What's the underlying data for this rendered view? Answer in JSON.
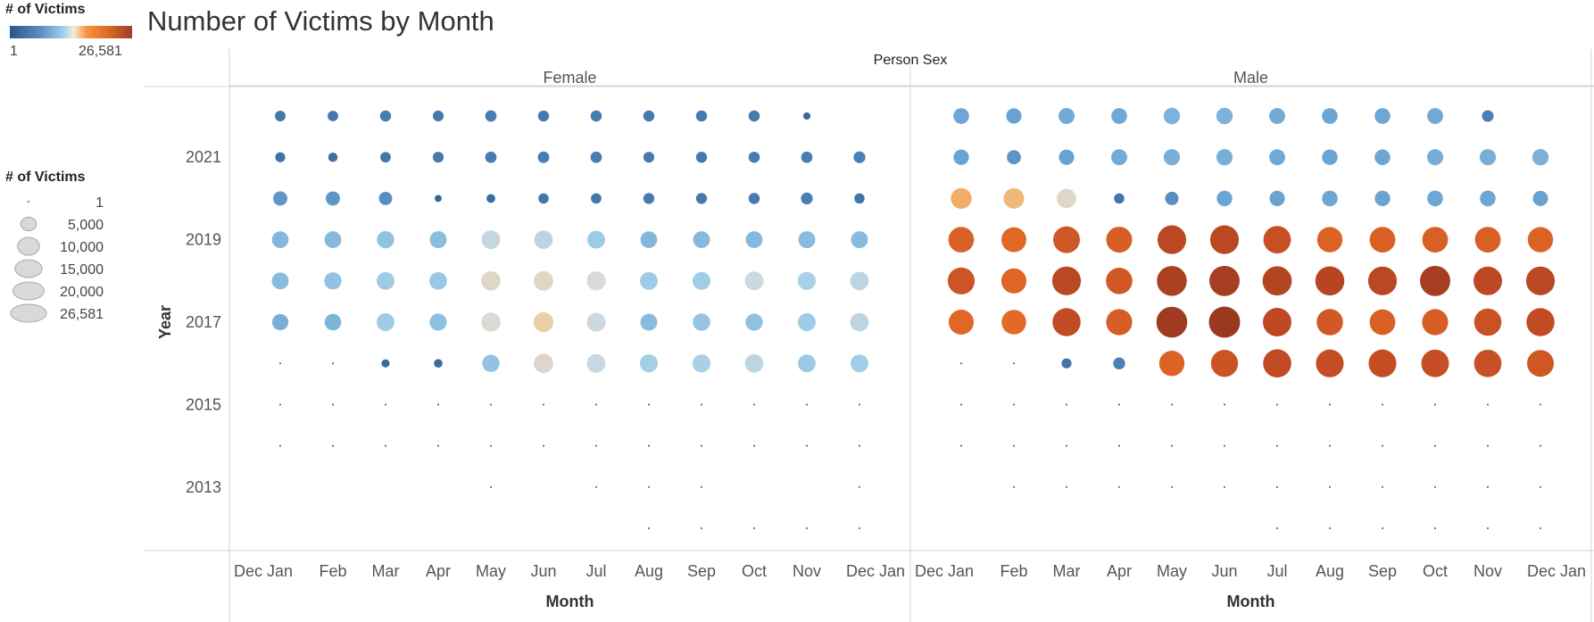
{
  "chart_data": {
    "type": "scatter",
    "title": "Number of Victims by Month",
    "column_header": "Person Sex",
    "panels": [
      "Female",
      "Male"
    ],
    "xlabel": "Month",
    "ylabel": "Year",
    "x_tick_labels": [
      "Dec Jan",
      "Feb",
      "Mar",
      "Apr",
      "May",
      "Jun",
      "Jul",
      "Aug",
      "Sep",
      "Oct",
      "Nov",
      "Dec Jan"
    ],
    "years": [
      2012,
      2013,
      2014,
      2015,
      2016,
      2017,
      2018,
      2019,
      2020,
      2021,
      2022
    ],
    "y_tick_labels": [
      "2013",
      "2015",
      "2017",
      "2019",
      "2021"
    ],
    "y_tick_values": [
      2013,
      2015,
      2017,
      2019,
      2021
    ],
    "months": [
      1,
      2,
      3,
      4,
      5,
      6,
      7,
      8,
      9,
      10,
      11,
      12
    ],
    "color_legend": {
      "title": "# of Victims",
      "min_label": "1",
      "max_label": "26,581",
      "min": 1,
      "max": 26581
    },
    "size_legend": {
      "title": "# of Victims",
      "labels": [
        "1",
        "5,000",
        "10,000",
        "15,000",
        "20,000",
        "26,581"
      ],
      "values": [
        1,
        5000,
        10000,
        15000,
        20000,
        26581
      ]
    },
    "victims": {
      "Female": {
        "2012": [
          0,
          0,
          0,
          0,
          0,
          0,
          0,
          1,
          1,
          1,
          1,
          1
        ],
        "2013": [
          0,
          0,
          0,
          0,
          1,
          0,
          1,
          1,
          1,
          0,
          0,
          1
        ],
        "2014": [
          1,
          1,
          1,
          1,
          1,
          1,
          1,
          1,
          1,
          1,
          1,
          1
        ],
        "2015": [
          1,
          1,
          1,
          1,
          1,
          1,
          1,
          1,
          1,
          1,
          1,
          1
        ],
        "2016": [
          1,
          1,
          1800,
          2000,
          8200,
          10200,
          9500,
          8800,
          8900,
          9300,
          8500,
          8700
        ],
        "2017": [
          7200,
          7500,
          8600,
          8000,
          10000,
          10800,
          9600,
          7800,
          8300,
          8100,
          8600,
          9300
        ],
        "2018": [
          7800,
          8200,
          8600,
          8400,
          10200,
          10300,
          9900,
          8600,
          8700,
          9600,
          8900,
          9300
        ],
        "2019": [
          7600,
          7700,
          8100,
          7900,
          9400,
          9300,
          8600,
          7600,
          7700,
          7700,
          7800,
          7800
        ],
        "2020": [
          5600,
          5500,
          4800,
          1300,
          2100,
          2900,
          3000,
          3300,
          3300,
          3400,
          3800,
          2900
        ],
        "2021": [
          2700,
          2400,
          3000,
          3200,
          3500,
          3600,
          3500,
          3200,
          3300,
          3400,
          3500,
          3800
        ],
        "2022": [
          3100,
          3000,
          3400,
          3200,
          3500,
          3300,
          3400,
          3400,
          3400,
          3400,
          1400,
          0
        ]
      },
      "Male": {
        "2012": [
          0,
          0,
          0,
          0,
          0,
          0,
          1,
          1,
          1,
          1,
          1,
          1
        ],
        "2013": [
          0,
          1,
          1,
          1,
          1,
          1,
          1,
          1,
          1,
          1,
          1,
          1
        ],
        "2014": [
          1,
          1,
          1,
          1,
          1,
          1,
          1,
          1,
          1,
          1,
          1,
          1
        ],
        "2015": [
          1,
          1,
          1,
          1,
          1,
          1,
          1,
          1,
          1,
          1,
          1,
          1
        ],
        "2016": [
          10,
          1,
          2700,
          3900,
          17500,
          20000,
          21600,
          21000,
          21000,
          20800,
          20500,
          19500
        ],
        "2017": [
          17000,
          16500,
          21500,
          18500,
          26000,
          26581,
          22200,
          19000,
          18000,
          18500,
          20300,
          21500
        ],
        "2018": [
          19800,
          17200,
          22500,
          19000,
          24400,
          25000,
          23300,
          23000,
          22500,
          25000,
          22200,
          22500
        ],
        "2019": [
          17800,
          16900,
          19500,
          18300,
          22400,
          22500,
          20600,
          17500,
          18000,
          18000,
          18000,
          17500
        ],
        "2020": [
          11800,
          11500,
          10200,
          2900,
          4900,
          6600,
          6400,
          6700,
          6500,
          6700,
          6700,
          6300
        ],
        "2021": [
          6500,
          5400,
          6400,
          7000,
          7200,
          7200,
          6900,
          6600,
          6700,
          7100,
          7200,
          7300
        ],
        "2022": [
          6700,
          6400,
          7000,
          6800,
          7400,
          7400,
          7000,
          6700,
          6700,
          6900,
          3700,
          0
        ]
      }
    }
  }
}
